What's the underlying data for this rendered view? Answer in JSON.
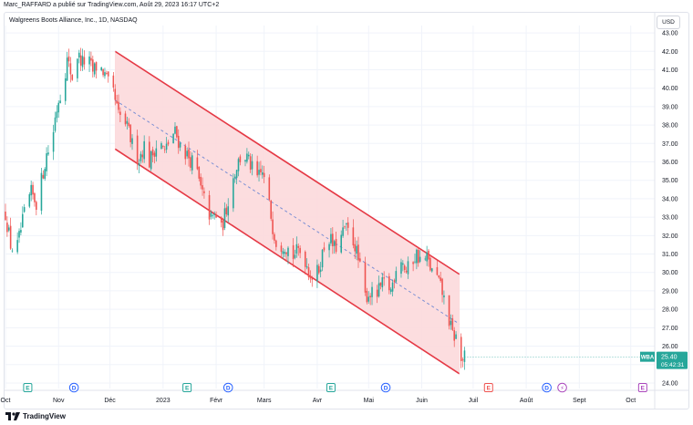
{
  "publisher": "Marc_RAFFARD a publié sur TradingView.com, Août 29, 2023 16:17 UTC+2",
  "legend": "Walgreens Boots Alliance, Inc., 1D, NASDAQ",
  "currency": "USD",
  "footer": {
    "brand": "TradingView",
    "logo_icon": "tradingview-logo-icon"
  },
  "colors": {
    "up": "#26a69a",
    "down": "#ef5350",
    "channel_line": "#e53945",
    "channel_fill": "#fcd9db",
    "mid_line": "#7b8fd4",
    "price_tag": "#26a69a"
  },
  "chart_data": {
    "type": "candlestick",
    "ylim": [
      23.7,
      43.4
    ],
    "y_ticks": [
      "43.00",
      "42.00",
      "41.00",
      "40.00",
      "39.00",
      "38.00",
      "37.00",
      "36.00",
      "35.00",
      "34.00",
      "33.00",
      "32.00",
      "31.00",
      "30.00",
      "29.00",
      "28.00",
      "27.00",
      "26.00",
      "25.00",
      "24.00"
    ],
    "x_labels": [
      {
        "label": "Oct",
        "day": 0
      },
      {
        "label": "Nov",
        "day": 31
      },
      {
        "label": "Déc",
        "day": 61
      },
      {
        "label": "2023",
        "day": 92
      },
      {
        "label": "Févr",
        "day": 123
      },
      {
        "label": "Mars",
        "day": 151
      },
      {
        "label": "Avr",
        "day": 182
      },
      {
        "label": "Mai",
        "day": 212
      },
      {
        "label": "Juin",
        "day": 243
      },
      {
        "label": "Juil",
        "day": 273
      },
      {
        "label": "Août",
        "day": 304
      },
      {
        "label": "Sept",
        "day": 335
      },
      {
        "label": "Oct",
        "day": 365
      }
    ],
    "close_path": [
      [
        0,
        33.2
      ],
      [
        3,
        31.5
      ],
      [
        6,
        31.0
      ],
      [
        9,
        32.3
      ],
      [
        12,
        33.6
      ],
      [
        15,
        34.3
      ],
      [
        18,
        33.8
      ],
      [
        21,
        35.0
      ],
      [
        24,
        36.4
      ],
      [
        27,
        37.0
      ],
      [
        29,
        38.4
      ],
      [
        31,
        39.4
      ],
      [
        33,
        39.9
      ],
      [
        36,
        41.5
      ],
      [
        39,
        40.6
      ],
      [
        42,
        41.8
      ],
      [
        45,
        41.4
      ],
      [
        48,
        41.6
      ],
      [
        51,
        40.9
      ],
      [
        54,
        41.3
      ],
      [
        57,
        40.9
      ],
      [
        60,
        40.2
      ],
      [
        63,
        39.7
      ],
      [
        66,
        38.5
      ],
      [
        69,
        38.3
      ],
      [
        72,
        37.6
      ],
      [
        75,
        36.6
      ],
      [
        78,
        36.2
      ],
      [
        81,
        36.9
      ],
      [
        84,
        36.0
      ],
      [
        87,
        36.7
      ],
      [
        90,
        37.1
      ],
      [
        93,
        36.5
      ],
      [
        96,
        37.3
      ],
      [
        99,
        37.6
      ],
      [
        102,
        36.9
      ],
      [
        105,
        36.5
      ],
      [
        108,
        36.1
      ],
      [
        111,
        35.8
      ],
      [
        114,
        34.5
      ],
      [
        117,
        33.7
      ],
      [
        120,
        32.9
      ],
      [
        123,
        33.1
      ],
      [
        126,
        32.3
      ],
      [
        129,
        33.5
      ],
      [
        132,
        34.8
      ],
      [
        135,
        35.8
      ],
      [
        138,
        36.4
      ],
      [
        141,
        36.2
      ],
      [
        144,
        35.6
      ],
      [
        147,
        35.1
      ],
      [
        150,
        35.4
      ],
      [
        153,
        34.2
      ],
      [
        156,
        32.5
      ],
      [
        159,
        31.3
      ],
      [
        162,
        31.6
      ],
      [
        165,
        31.3
      ],
      [
        168,
        30.9
      ],
      [
        171,
        31.2
      ],
      [
        174,
        31.0
      ],
      [
        177,
        30.1
      ],
      [
        180,
        29.6
      ],
      [
        183,
        30.2
      ],
      [
        186,
        31.4
      ],
      [
        189,
        31.9
      ],
      [
        192,
        31.3
      ],
      [
        195,
        31.6
      ],
      [
        198,
        32.4
      ],
      [
        201,
        32.1
      ],
      [
        204,
        31.5
      ],
      [
        207,
        30.2
      ],
      [
        210,
        28.7
      ],
      [
        213,
        28.9
      ],
      [
        216,
        28.6
      ],
      [
        219,
        29.2
      ],
      [
        222,
        29.5
      ],
      [
        225,
        29.0
      ],
      [
        228,
        30.3
      ],
      [
        231,
        30.8
      ],
      [
        234,
        30.0
      ],
      [
        237,
        30.6
      ],
      [
        240,
        31.0
      ],
      [
        243,
        30.5
      ],
      [
        246,
        30.8
      ],
      [
        249,
        30.0
      ],
      [
        252,
        29.7
      ],
      [
        255,
        28.9
      ],
      [
        258,
        27.8
      ],
      [
        261,
        26.6
      ],
      [
        264,
        26.4
      ],
      [
        266,
        25.2
      ],
      [
        268,
        25.4
      ]
    ],
    "channel": {
      "upper": {
        "start": {
          "day": 64,
          "value": 42.0
        },
        "end": {
          "day": 265,
          "value": 29.9
        }
      },
      "lower": {
        "start": {
          "day": 64,
          "value": 36.7
        },
        "end": {
          "day": 265,
          "value": 24.5
        }
      },
      "middle": {
        "start": {
          "day": 64,
          "value": 39.35
        },
        "end": {
          "day": 265,
          "value": 27.2
        }
      }
    },
    "last_price": {
      "symbol": "WBA",
      "price": "25.40",
      "countdown": "05:42:31"
    },
    "events": [
      {
        "day": 13,
        "type": "earnings",
        "letter": "E"
      },
      {
        "day": 40,
        "type": "dividend",
        "letter": "D"
      },
      {
        "day": 106,
        "type": "earnings",
        "letter": "E"
      },
      {
        "day": 130,
        "type": "dividend",
        "letter": "D"
      },
      {
        "day": 190,
        "type": "earnings",
        "letter": "E"
      },
      {
        "day": 222,
        "type": "dividend",
        "letter": "D"
      },
      {
        "day": 282,
        "type": "earnings-negative",
        "letter": "E"
      },
      {
        "day": 316,
        "type": "dividend",
        "letter": "D"
      },
      {
        "day": 325,
        "type": "split",
        "letter": "⚡"
      },
      {
        "day": 372,
        "type": "earnings-upcoming",
        "letter": "E"
      }
    ]
  }
}
